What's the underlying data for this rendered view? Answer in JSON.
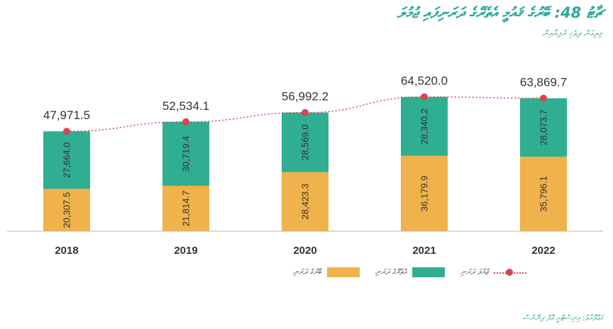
{
  "title": "ޗާޓު 48: ބޭރުގެ ޤައުމީ އެތެރޭގެ ދަރަނިފައި ޖުމުލަ",
  "subtitle": "މިލިއަން ދިވެހި ރުފިޔާއިން",
  "source": "މަޢުލޫމާތު: މިނިސްޓްރީ އޮފް ފިނޭންސް",
  "legend": {
    "foreign": "ބޭރުގެ ދަރަނި",
    "domestic": "އެތެރޭގެ ދަރަނި",
    "total": "ޖުމުލަ ދަރަނި"
  },
  "colors": {
    "foreign": "#f0b24a",
    "domestic": "#2fae92",
    "total": "#d9444f",
    "axis": "#b5b5b5"
  },
  "chart_data": {
    "type": "bar",
    "stacked": true,
    "categories": [
      "2018",
      "2019",
      "2020",
      "2021",
      "2022"
    ],
    "series": [
      {
        "name": "ބޭރުގެ ދަރަނި",
        "values": [
          20307.5,
          21814.7,
          28423.3,
          36179.9,
          35796.1
        ]
      },
      {
        "name": "އެތެރޭގެ ދަރަނި",
        "values": [
          27664.0,
          30719.4,
          28569.0,
          28340.2,
          28073.7
        ]
      },
      {
        "name": "ޖުމުލަ ދަރަނި",
        "type": "line",
        "values": [
          47971.5,
          52534.1,
          56992.2,
          64520.0,
          63869.7
        ]
      }
    ],
    "bar_labels": [
      [
        "20,307.5",
        "21,814.7",
        "28,423.3",
        "36,179.9",
        "35,796.1"
      ],
      [
        "27,664.0",
        "30,719.4",
        "28,569.0",
        "28,340.2",
        "28,073.7"
      ]
    ],
    "total_labels": [
      "47,971.5",
      "52,534.1",
      "56,992.2",
      "64,520.0",
      "63,869.7"
    ],
    "ylim": [
      0,
      70000
    ],
    "grid": false,
    "legend_position": "bottom"
  }
}
